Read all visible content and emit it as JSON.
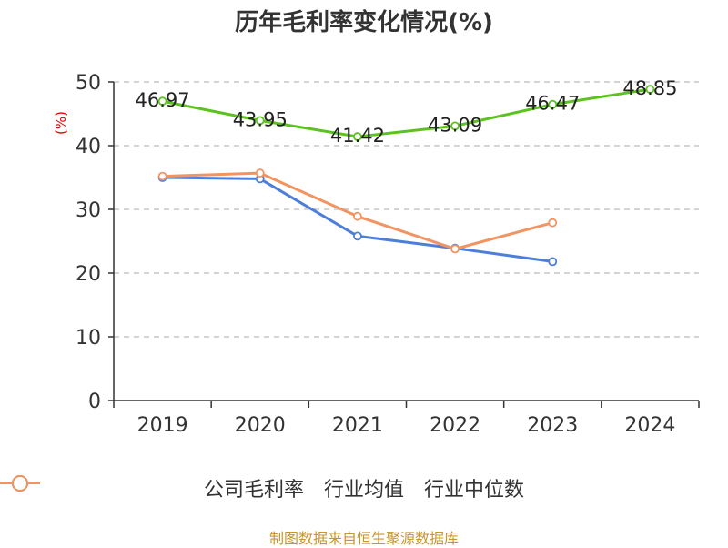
{
  "title": "历年毛利率变化情况(%)",
  "source": "制图数据来自恒生聚源数据库",
  "colors": {
    "company": "#5cc21e",
    "avg": "#4e7fd8",
    "median": "#f29461",
    "grid": "#bbbbbb",
    "axis": "#333333"
  },
  "chart_data": {
    "type": "line",
    "ylabel": "(%)",
    "ylim": [
      0,
      50
    ],
    "yticks": [
      0,
      10,
      20,
      30,
      40,
      50
    ],
    "grid": true,
    "legend_position": "bottom",
    "categories": [
      "2019",
      "2020",
      "2021",
      "2022",
      "2023",
      "2024"
    ],
    "series": [
      {
        "name": "公司毛利率",
        "values": [
          46.97,
          43.95,
          41.42,
          43.09,
          46.47,
          48.85
        ],
        "labels": [
          "46.97",
          "43.95",
          "41.42",
          "43.09",
          "46.47",
          "48.85"
        ]
      },
      {
        "name": "行业均值",
        "values": [
          35.0,
          34.8,
          25.8,
          23.9,
          21.8,
          null
        ]
      },
      {
        "name": "行业中位数",
        "values": [
          35.2,
          35.7,
          28.9,
          23.8,
          27.9,
          null
        ]
      }
    ]
  }
}
